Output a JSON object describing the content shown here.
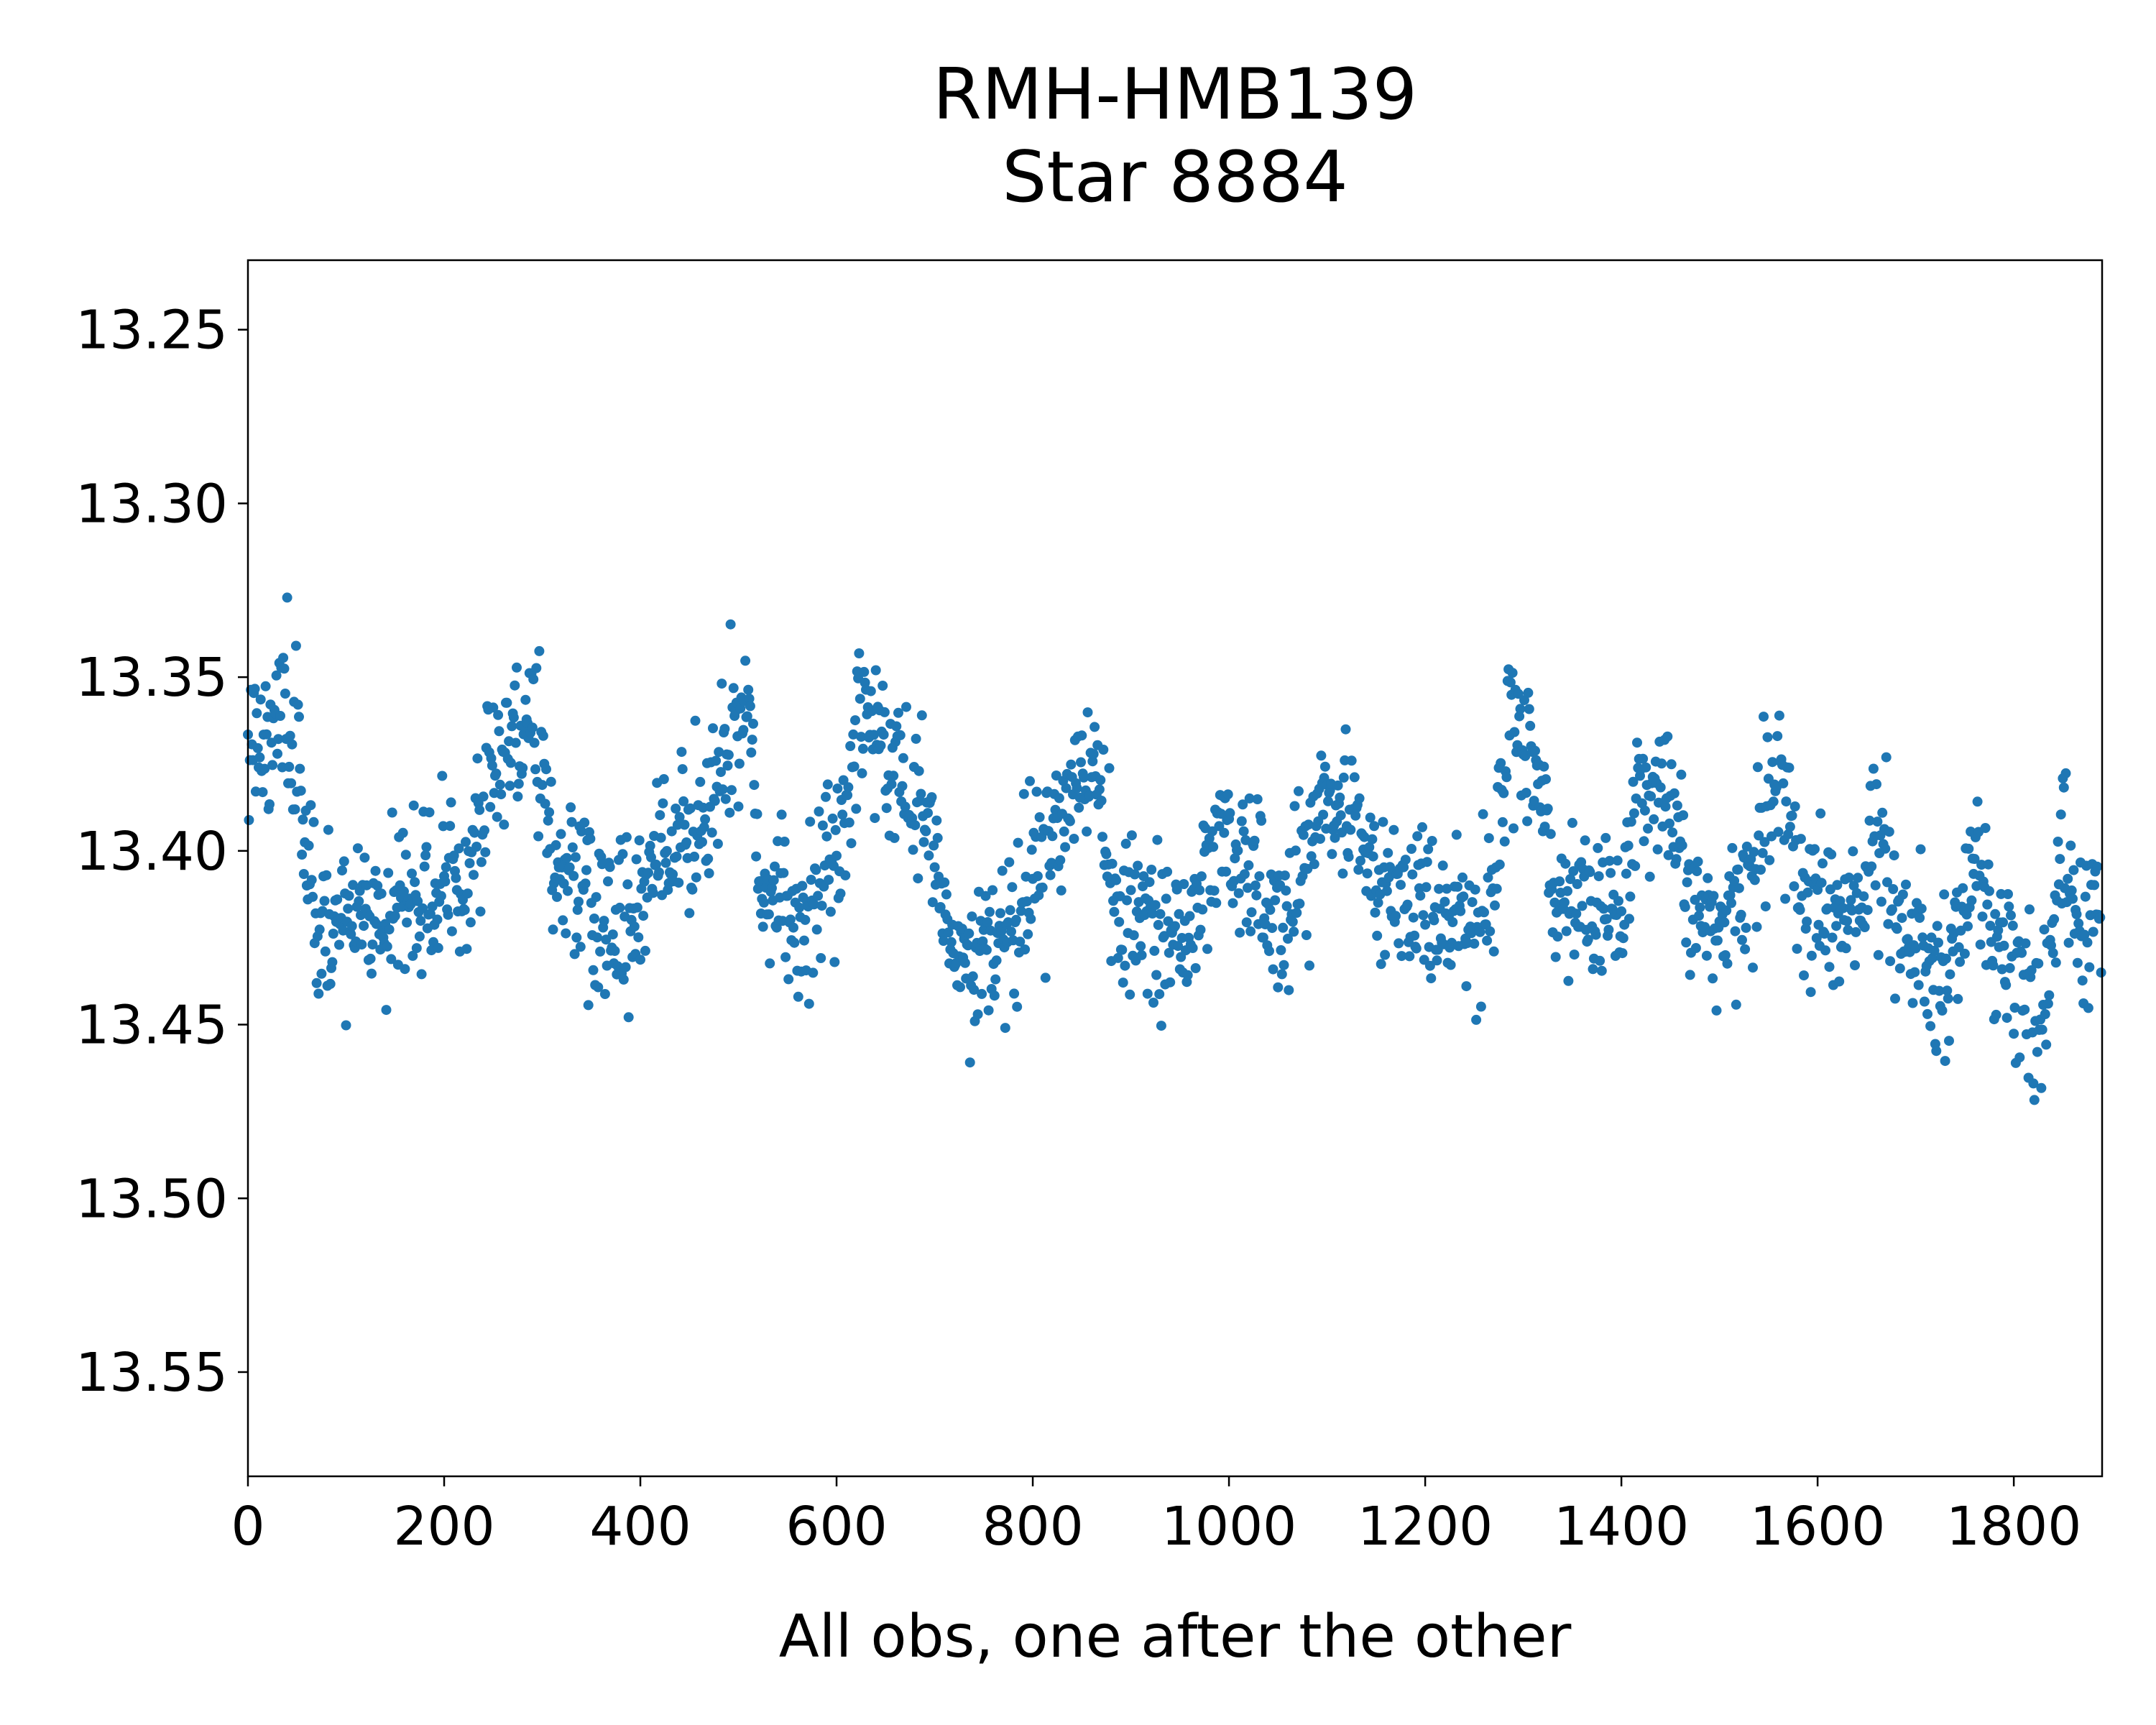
{
  "chart_data": {
    "type": "scatter",
    "title": "RMH-HMB139",
    "subtitle": "Star 8884",
    "xlabel": "All obs, one after the other",
    "ylabel": "",
    "xlim": [
      0,
      1890
    ],
    "ylim": [
      13.23,
      13.58
    ],
    "y_inverted": true,
    "grid": false,
    "x_ticks": [
      "0",
      "200",
      "400",
      "600",
      "800",
      "1000",
      "1200",
      "1400",
      "1600",
      "1800"
    ],
    "y_ticks": [
      "13.25",
      "13.30",
      "13.35",
      "13.40",
      "13.45",
      "13.50",
      "13.55"
    ],
    "marker_color": "#1f77b4",
    "series": [
      {
        "n_points": 1890,
        "mean_profile": [
          [
            0,
            13.37
          ],
          [
            50,
            13.365
          ],
          [
            70,
            13.425
          ],
          [
            150,
            13.418
          ],
          [
            220,
            13.41
          ],
          [
            240,
            13.385
          ],
          [
            255,
            13.372
          ],
          [
            290,
            13.36
          ],
          [
            310,
            13.398
          ],
          [
            350,
            13.42
          ],
          [
            380,
            13.425
          ],
          [
            420,
            13.405
          ],
          [
            470,
            13.385
          ],
          [
            510,
            13.36
          ],
          [
            525,
            13.412
          ],
          [
            560,
            13.42
          ],
          [
            600,
            13.41
          ],
          [
            620,
            13.365
          ],
          [
            660,
            13.375
          ],
          [
            700,
            13.4
          ],
          [
            720,
            13.43
          ],
          [
            760,
            13.425
          ],
          [
            800,
            13.41
          ],
          [
            840,
            13.38
          ],
          [
            870,
            13.375
          ],
          [
            880,
            13.42
          ],
          [
            960,
            13.425
          ],
          [
            990,
            13.39
          ],
          [
            1010,
            13.405
          ],
          [
            1060,
            13.42
          ],
          [
            1090,
            13.39
          ],
          [
            1130,
            13.385
          ],
          [
            1150,
            13.415
          ],
          [
            1270,
            13.42
          ],
          [
            1285,
            13.36
          ],
          [
            1320,
            13.38
          ],
          [
            1330,
            13.415
          ],
          [
            1400,
            13.42
          ],
          [
            1420,
            13.38
          ],
          [
            1460,
            13.39
          ],
          [
            1470,
            13.42
          ],
          [
            1520,
            13.42
          ],
          [
            1560,
            13.375
          ],
          [
            1580,
            13.41
          ],
          [
            1640,
            13.42
          ],
          [
            1660,
            13.39
          ],
          [
            1680,
            13.42
          ],
          [
            1730,
            13.44
          ],
          [
            1760,
            13.4
          ],
          [
            1780,
            13.43
          ],
          [
            1830,
            13.445
          ],
          [
            1850,
            13.4
          ],
          [
            1870,
            13.43
          ],
          [
            1890,
            13.42
          ]
        ]
      }
    ]
  }
}
